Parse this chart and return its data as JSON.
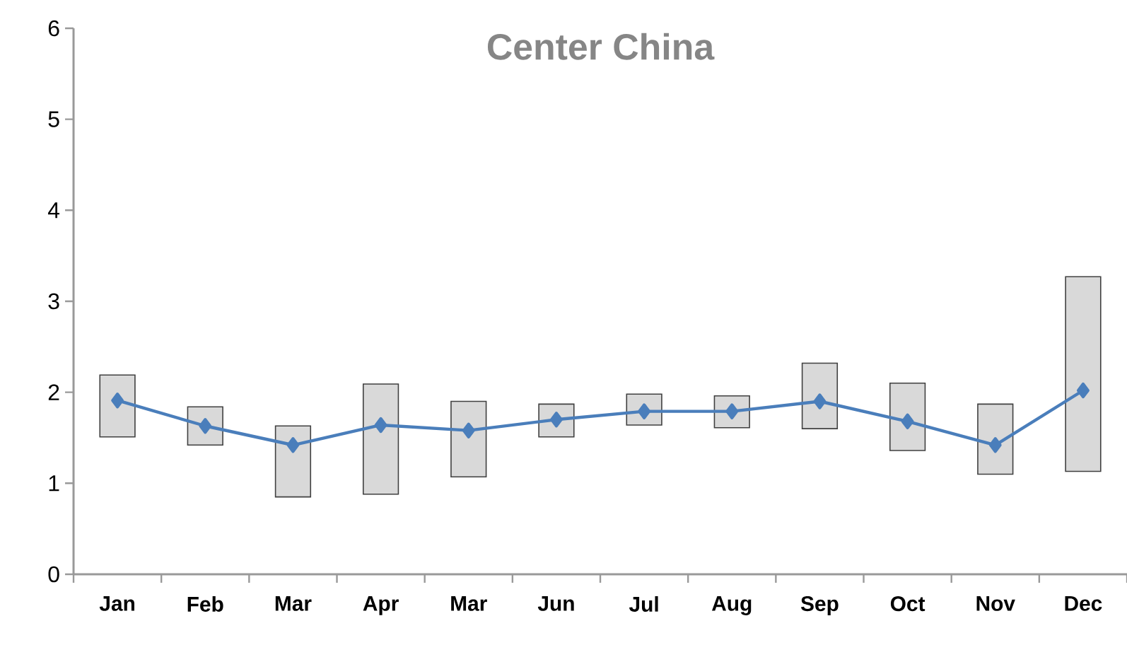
{
  "chart_data": {
    "type": "bar",
    "title": "Center China",
    "categories": [
      "Jan",
      "Feb",
      "Mar",
      "Apr",
      "Mar",
      "Jun",
      "Jul",
      "Aug",
      "Sep",
      "Oct",
      "Nov",
      "Dec"
    ],
    "series": [
      {
        "color": "#d9d9d9",
        "base": [
          1.51,
          1.42,
          0.85,
          0.88,
          1.07,
          1.51,
          1.64,
          1.61,
          1.6,
          1.36,
          1.1,
          1.13
        ],
        "values": [
          0.68,
          0.42,
          0.78,
          1.21,
          0.83,
          0.36,
          0.34,
          0.35,
          0.72,
          0.74,
          0.77,
          2.14
        ]
      },
      {
        "type": "line",
        "color": "#4a7ebb",
        "values": [
          1.91,
          1.63,
          1.42,
          1.64,
          1.58,
          1.7,
          1.79,
          1.79,
          1.9,
          1.68,
          1.42,
          2.02
        ]
      }
    ],
    "marker": "diamond",
    "ylim": [
      0,
      6
    ],
    "yticks": [
      0,
      1,
      2,
      3,
      4,
      5,
      6
    ]
  }
}
